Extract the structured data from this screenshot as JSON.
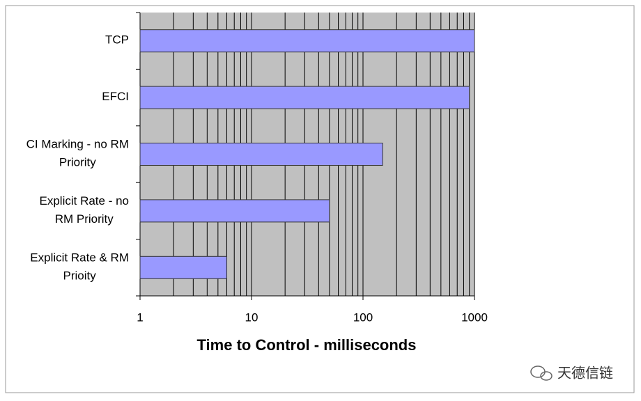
{
  "chart_data": {
    "type": "bar",
    "orientation": "horizontal",
    "categories": [
      "TCP",
      "EFCI",
      "CI Marking - no RM\nPriority",
      "Explicit Rate - no\nRM Priority",
      "Explicit Rate & RM\nPrioity"
    ],
    "values": [
      1000,
      900,
      150,
      50,
      6
    ],
    "color": "#9999ff",
    "x_label": "Time to Control - milliseconds",
    "xlim": [
      1,
      1000
    ],
    "xticks": [
      1,
      10,
      100,
      1000
    ],
    "xscale": "log",
    "grid": true,
    "plot_background": "#c0c0c0"
  },
  "watermark": "天德信链"
}
